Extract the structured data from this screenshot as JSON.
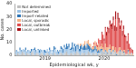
{
  "chart_data": {
    "type": "bar",
    "x_label": "Epidemiological wk, y",
    "y_label": "No. cases",
    "stacked": true,
    "grid": false,
    "legend": "upper left",
    "ylim": [
      0,
      40
    ],
    "yticks": [
      0,
      10,
      20,
      30,
      40
    ],
    "categories": [
      null,
      null,
      null,
      null,
      null,
      null,
      null,
      null,
      null,
      null,
      null,
      null,
      null,
      null,
      null,
      null,
      null,
      null,
      null,
      null,
      null,
      null,
      null,
      null,
      null,
      null,
      "2019",
      null,
      null,
      null,
      null,
      null,
      null,
      null,
      null,
      null,
      null,
      null,
      null,
      null,
      null,
      null,
      null,
      null,
      null,
      null,
      null,
      null,
      null,
      null,
      null,
      null,
      null,
      null,
      null,
      null,
      null,
      null,
      null,
      null,
      null,
      null,
      null,
      null,
      null,
      null,
      null,
      null,
      null,
      null,
      null,
      null,
      null,
      null,
      null,
      null,
      null,
      null,
      "2020",
      null,
      null,
      null,
      null,
      null,
      null,
      null,
      null,
      null,
      null,
      null,
      null,
      null,
      null,
      null,
      null,
      null,
      null,
      null,
      null,
      null,
      null,
      null,
      null,
      null
    ],
    "series": [
      {
        "name": "Not determined",
        "color": "#bfbfbf",
        "values": [
          1,
          0,
          2,
          1,
          0,
          1,
          3,
          2,
          1,
          0,
          2,
          1,
          1,
          0,
          2,
          3,
          1,
          0,
          1,
          2,
          1,
          0,
          1,
          2,
          1,
          0,
          0,
          1,
          2,
          1,
          0,
          1,
          1,
          0,
          2,
          1,
          0,
          1,
          0,
          1,
          2,
          1,
          0,
          1,
          2,
          3,
          1,
          0,
          1,
          2,
          1,
          0,
          2,
          1,
          3,
          2,
          1,
          0,
          1,
          2,
          1,
          2,
          0,
          1,
          3,
          2,
          1,
          0,
          2,
          1,
          1,
          2,
          0,
          1,
          2,
          1,
          3,
          2,
          1,
          2,
          2,
          1,
          3,
          2,
          1,
          2,
          3,
          1,
          2,
          0,
          1,
          2,
          3,
          2,
          1,
          2,
          1,
          0,
          1,
          2,
          1,
          0,
          1,
          0
        ]
      },
      {
        "name": "Imported",
        "color": "#9dc3e6",
        "values": [
          2,
          3,
          1,
          2,
          4,
          2,
          1,
          3,
          2,
          4,
          1,
          2,
          3,
          2,
          1,
          2,
          3,
          4,
          2,
          1,
          3,
          2,
          4,
          1,
          2,
          3,
          2,
          1,
          3,
          2,
          4,
          2,
          1,
          3,
          2,
          4,
          3,
          2,
          1,
          2,
          3,
          4,
          2,
          5,
          3,
          2,
          4,
          6,
          3,
          2,
          4,
          3,
          5,
          2,
          4,
          3,
          2,
          3,
          4,
          2,
          3,
          2,
          4,
          3,
          2,
          1,
          3,
          2,
          1,
          2,
          3,
          1,
          2,
          1,
          0,
          2,
          1,
          1,
          0,
          1,
          1,
          0,
          1,
          2,
          0,
          1,
          0,
          1,
          1,
          0,
          0,
          1,
          0,
          1,
          0,
          0,
          1,
          0,
          0,
          1,
          0,
          0,
          1,
          0
        ]
      },
      {
        "name": "Import-related",
        "color": "#2e75b6",
        "values": [
          0,
          1,
          0,
          0,
          2,
          1,
          0,
          0,
          1,
          2,
          0,
          1,
          0,
          1,
          2,
          0,
          1,
          2,
          1,
          0,
          1,
          2,
          0,
          1,
          0,
          1,
          2,
          1,
          0,
          0,
          2,
          1,
          0,
          1,
          3,
          1,
          0,
          1,
          2,
          1,
          2,
          1,
          3,
          2,
          1,
          4,
          2,
          3,
          1,
          2,
          5,
          3,
          2,
          4,
          1,
          3,
          2,
          4,
          3,
          2,
          3,
          4,
          2,
          5,
          3,
          4,
          2,
          3,
          1,
          2,
          3,
          2,
          1,
          2,
          1,
          2,
          1,
          0,
          1,
          1,
          0,
          1,
          0,
          1,
          1,
          0,
          1,
          0,
          0,
          1,
          0,
          0,
          1,
          0,
          0,
          1,
          0,
          0,
          0,
          1,
          0,
          0,
          0,
          0
        ]
      },
      {
        "name": "Local, sporadic",
        "color": "#f4b183",
        "values": [
          0,
          0,
          0,
          0,
          0,
          0,
          0,
          0,
          0,
          0,
          0,
          0,
          0,
          0,
          0,
          0,
          0,
          0,
          0,
          0,
          0,
          0,
          0,
          0,
          0,
          0,
          0,
          0,
          0,
          0,
          0,
          0,
          0,
          0,
          0,
          0,
          0,
          0,
          0,
          0,
          0,
          0,
          0,
          0,
          0,
          0,
          0,
          0,
          0,
          0,
          0,
          0,
          0,
          0,
          0,
          1,
          0,
          2,
          1,
          0,
          2,
          3,
          1,
          2,
          4,
          2,
          3,
          1,
          2,
          3,
          4,
          2,
          3,
          5,
          3,
          2,
          4,
          3,
          2,
          5,
          3,
          4,
          2,
          3,
          2,
          4,
          3,
          2,
          3,
          1,
          2,
          3,
          2,
          1,
          2,
          1,
          2,
          1,
          0,
          1,
          2,
          1,
          0,
          1
        ]
      },
      {
        "name": "Local, outbreak",
        "color": "#e05050",
        "values": [
          0,
          0,
          0,
          0,
          0,
          0,
          0,
          0,
          0,
          0,
          0,
          0,
          0,
          0,
          0,
          0,
          0,
          0,
          0,
          0,
          0,
          0,
          0,
          0,
          0,
          0,
          0,
          0,
          0,
          0,
          0,
          0,
          0,
          0,
          0,
          0,
          0,
          0,
          0,
          0,
          0,
          0,
          0,
          0,
          0,
          0,
          0,
          0,
          0,
          0,
          0,
          0,
          0,
          0,
          0,
          0,
          0,
          0,
          0,
          0,
          0,
          0,
          0,
          0,
          0,
          0,
          0,
          0,
          1,
          2,
          0,
          3,
          2,
          4,
          6,
          5,
          8,
          10,
          7,
          12,
          9,
          14,
          11,
          16,
          18,
          13,
          20,
          15,
          22,
          17,
          25,
          19,
          14,
          21,
          12,
          16,
          10,
          13,
          8,
          11,
          6,
          4,
          3,
          2
        ]
      },
      {
        "name": "Local, unlinked",
        "color": "#a50f15",
        "values": [
          0,
          0,
          0,
          0,
          0,
          0,
          0,
          0,
          0,
          0,
          0,
          0,
          0,
          0,
          0,
          0,
          0,
          0,
          0,
          0,
          0,
          0,
          0,
          0,
          0,
          0,
          0,
          0,
          0,
          0,
          0,
          0,
          0,
          0,
          0,
          0,
          0,
          0,
          0,
          0,
          0,
          0,
          0,
          0,
          0,
          0,
          0,
          0,
          0,
          0,
          0,
          0,
          0,
          0,
          0,
          0,
          0,
          0,
          0,
          0,
          0,
          0,
          0,
          0,
          0,
          0,
          0,
          0,
          0,
          0,
          0,
          0,
          0,
          0,
          0,
          0,
          1,
          0,
          2,
          1,
          3,
          2,
          4,
          3,
          2,
          5,
          3,
          4,
          6,
          3,
          5,
          4,
          3,
          2,
          4,
          3,
          2,
          1,
          2,
          1,
          0,
          1,
          0,
          1
        ]
      }
    ]
  }
}
